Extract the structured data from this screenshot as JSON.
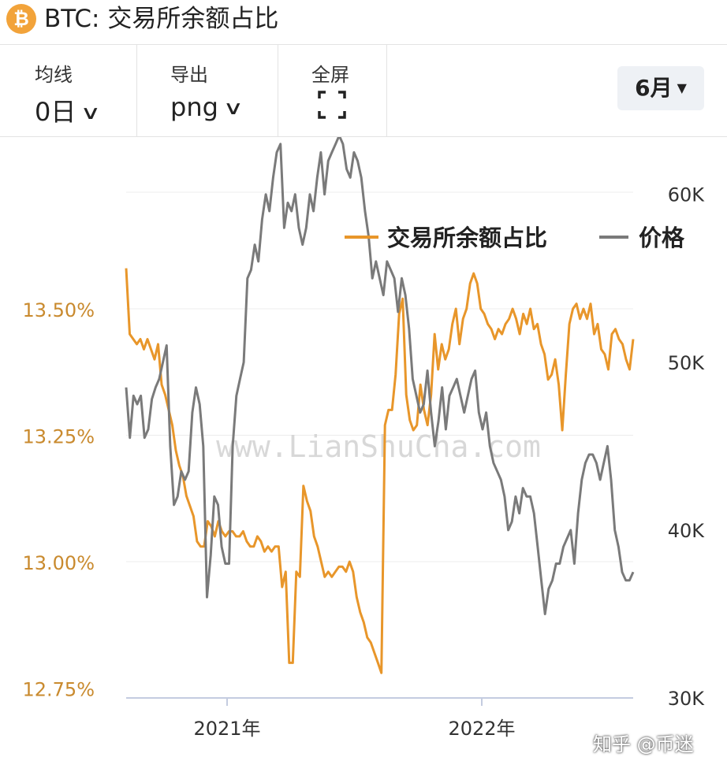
{
  "header": {
    "coin_icon": "bitcoin-icon",
    "coin_symbol": "₿",
    "title": "BTC: 交易所余额占比"
  },
  "toolbar": {
    "ma": {
      "label": "均线",
      "value": "0日"
    },
    "export": {
      "label": "导出",
      "value": "png"
    },
    "fullscreen": {
      "label": "全屏",
      "icon": "fullscreen-icon"
    },
    "period": {
      "value": "6月"
    }
  },
  "watermark": "www.LianShuCha.com",
  "footer": {
    "text": "知乎 @币迷"
  },
  "colors": {
    "ratio": "#e8962a",
    "price": "#7a7a7a",
    "left_axis_text": "#c98a2e",
    "right_axis_text": "#333333"
  },
  "chart_data": {
    "type": "line",
    "x_ticks": [
      "2021年",
      "2022年"
    ],
    "left_axis": {
      "ticks": [
        "13.50%",
        "13.25%",
        "13.00%",
        "12.75%"
      ],
      "values": [
        13.5,
        13.25,
        13.0,
        12.75
      ]
    },
    "right_axis": {
      "ticks": [
        "60K",
        "50K",
        "40K",
        "30K"
      ],
      "values": [
        60000,
        50000,
        40000,
        30000
      ]
    },
    "legend_position": "top-right",
    "series": [
      {
        "name": "交易所余额占比",
        "axis": "left",
        "color": "#e8962a",
        "values": [
          13.58,
          13.45,
          13.44,
          13.43,
          13.44,
          13.42,
          13.44,
          13.42,
          13.4,
          13.43,
          13.35,
          13.33,
          13.3,
          13.27,
          13.22,
          13.19,
          13.17,
          13.13,
          13.11,
          13.09,
          13.04,
          13.03,
          13.03,
          13.08,
          13.07,
          13.05,
          13.08,
          13.06,
          13.05,
          13.06,
          13.06,
          13.05,
          13.05,
          13.06,
          13.04,
          13.03,
          13.03,
          13.05,
          13.04,
          13.02,
          13.03,
          13.02,
          13.03,
          13.03,
          12.95,
          12.98,
          12.8,
          12.8,
          12.98,
          12.97,
          13.15,
          13.12,
          13.1,
          13.05,
          13.03,
          13.0,
          12.97,
          12.98,
          12.97,
          12.98,
          12.99,
          12.99,
          12.98,
          13.0,
          12.98,
          12.93,
          12.9,
          12.88,
          12.85,
          12.84,
          12.82,
          12.8,
          12.78,
          13.27,
          13.3,
          13.3,
          13.37,
          13.49,
          13.52,
          13.33,
          13.28,
          13.26,
          13.27,
          13.35,
          13.3,
          13.27,
          13.33,
          13.45,
          13.38,
          13.43,
          13.4,
          13.42,
          13.47,
          13.5,
          13.43,
          13.48,
          13.5,
          13.55,
          13.57,
          13.55,
          13.5,
          13.49,
          13.47,
          13.46,
          13.44,
          13.46,
          13.45,
          13.47,
          13.48,
          13.5,
          13.48,
          13.45,
          13.49,
          13.47,
          13.5,
          13.46,
          13.47,
          13.43,
          13.41,
          13.36,
          13.37,
          13.4,
          13.35,
          13.26,
          13.37,
          13.47,
          13.5,
          13.51,
          13.48,
          13.5,
          13.48,
          13.51,
          13.45,
          13.47,
          13.42,
          13.41,
          13.38,
          13.45,
          13.46,
          13.44,
          13.43,
          13.4,
          13.38,
          13.44
        ]
      },
      {
        "name": "价格",
        "axis": "right",
        "color": "#7a7a7a",
        "values": [
          48.5,
          45.5,
          48.0,
          47.5,
          48.0,
          45.5,
          46.0,
          47.8,
          48.5,
          49.0,
          50.0,
          51.0,
          45.0,
          41.5,
          42.0,
          43.5,
          43.0,
          43.5,
          47.0,
          48.5,
          47.5,
          45.0,
          36.0,
          38.5,
          42.0,
          41.5,
          39.0,
          38.0,
          38.0,
          45.0,
          48.0,
          49.0,
          50.0,
          55.0,
          55.5,
          57.0,
          56.0,
          58.5,
          60.0,
          59.0,
          61.0,
          62.5,
          63.0,
          58.0,
          59.5,
          59.0,
          60.0,
          58.0,
          57.0,
          58.0,
          60.0,
          59.0,
          61.0,
          62.5,
          60.0,
          62.0,
          62.5,
          63.0,
          63.5,
          63.0,
          61.5,
          61.0,
          62.5,
          62.0,
          61.0,
          59.0,
          57.5,
          55.0,
          56.0,
          55.0,
          54.0,
          56.0,
          55.5,
          55.0,
          53.0,
          55.0,
          54.0,
          52.0,
          49.0,
          48.0,
          47.0,
          47.5,
          49.5,
          47.0,
          45.0,
          46.5,
          48.5,
          46.0,
          48.0,
          48.5,
          49.0,
          48.0,
          47.0,
          48.0,
          49.0,
          49.5,
          47.0,
          46.0,
          47.0,
          45.0,
          44.0,
          43.5,
          43.0,
          42.0,
          40.0,
          40.5,
          42.0,
          41.0,
          42.5,
          42.0,
          42.0,
          41.0,
          39.0,
          37.0,
          35.0,
          36.5,
          37.0,
          38.0,
          38.0,
          39.0,
          39.5,
          40.0,
          38.0,
          41.0,
          43.0,
          44.0,
          44.5,
          44.5,
          44.0,
          43.0,
          44.0,
          45.0,
          43.0,
          40.0,
          39.0,
          37.5,
          37.0,
          37.0,
          37.5
        ]
      }
    ]
  }
}
